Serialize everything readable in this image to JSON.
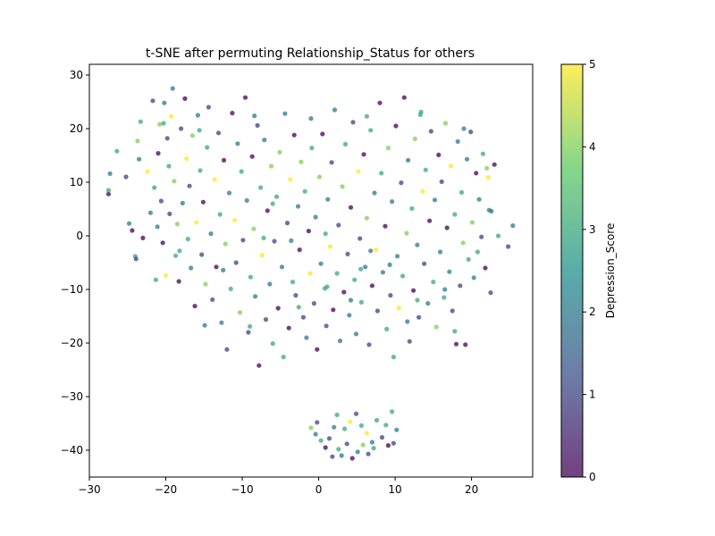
{
  "chart_data": {
    "type": "scatter",
    "title": "t-SNE after permuting Relationship_Status for others",
    "xlabel": "",
    "ylabel": "",
    "xlim": [
      -30,
      28
    ],
    "ylim": [
      -45,
      32
    ],
    "xticks": [
      -30,
      -20,
      -10,
      0,
      10,
      20
    ],
    "yticks": [
      -40,
      -30,
      -20,
      -10,
      0,
      10,
      20,
      30
    ],
    "grid": false,
    "colorbar": {
      "label": "Depression_Score",
      "range": [
        0,
        5
      ],
      "ticks": [
        0,
        1,
        2,
        3,
        4,
        5
      ],
      "colormap": "viridis"
    },
    "point_alpha": 0.75,
    "colormap_stops": [
      "#440154",
      "#3b528b",
      "#21918c",
      "#5ec962",
      "#fde725"
    ],
    "points": [
      [
        -27.5,
        7.8,
        0
      ],
      [
        -27.3,
        11.6,
        2
      ],
      [
        -27.5,
        8.5,
        3
      ],
      [
        -26.4,
        15.8,
        3
      ],
      [
        -25.2,
        11.0,
        1
      ],
      [
        -24.8,
        2.3,
        2
      ],
      [
        -24.4,
        1.0,
        0
      ],
      [
        -24.0,
        -3.8,
        3
      ],
      [
        -23.9,
        -4.3,
        1
      ],
      [
        -23.7,
        17.7,
        4
      ],
      [
        -23.5,
        14.3,
        2
      ],
      [
        -23.3,
        21.3,
        3
      ],
      [
        -23.0,
        -0.4,
        0
      ],
      [
        -22.4,
        12.0,
        5
      ],
      [
        -22.0,
        4.3,
        2
      ],
      [
        -21.7,
        25.2,
        1
      ],
      [
        -21.5,
        9.0,
        3
      ],
      [
        -21.3,
        -8.2,
        3
      ],
      [
        -21.1,
        1.7,
        2
      ],
      [
        -21.0,
        15.4,
        0
      ],
      [
        -20.8,
        20.8,
        4
      ],
      [
        -20.6,
        6.5,
        1
      ],
      [
        -20.4,
        -1.3,
        0
      ],
      [
        -20.2,
        24.8,
        2
      ],
      [
        -20.0,
        -7.4,
        5
      ],
      [
        -19.8,
        18.2,
        1
      ],
      [
        -19.6,
        13.0,
        3
      ],
      [
        -19.5,
        4.1,
        1
      ],
      [
        -19.3,
        22.3,
        5
      ],
      [
        -19.1,
        27.5,
        2
      ],
      [
        -18.9,
        10.2,
        4
      ],
      [
        -18.7,
        -3.7,
        3
      ],
      [
        -18.5,
        2.2,
        4
      ],
      [
        -18.3,
        -8.5,
        0
      ],
      [
        -18.0,
        20.0,
        1
      ],
      [
        -17.8,
        6.1,
        2
      ],
      [
        -17.5,
        25.6,
        0
      ],
      [
        -17.3,
        14.4,
        5
      ],
      [
        -17.1,
        -0.6,
        3
      ],
      [
        -16.9,
        9.3,
        1
      ],
      [
        -16.7,
        -6.0,
        2
      ],
      [
        -16.5,
        18.7,
        4
      ],
      [
        -16.2,
        -13.1,
        0
      ],
      [
        -16.0,
        2.5,
        5
      ],
      [
        -15.8,
        22.5,
        2
      ],
      [
        -15.5,
        12.2,
        3
      ],
      [
        -15.3,
        -3.5,
        1
      ],
      [
        -15.1,
        6.3,
        0
      ],
      [
        -14.8,
        -9.0,
        4
      ],
      [
        -14.6,
        16.5,
        3
      ],
      [
        -14.4,
        24.0,
        1
      ],
      [
        -14.1,
        0.4,
        2
      ],
      [
        -13.9,
        -11.9,
        1
      ],
      [
        -13.6,
        10.5,
        5
      ],
      [
        -13.4,
        -5.8,
        0
      ],
      [
        -13.1,
        19.2,
        1
      ],
      [
        -12.9,
        4.0,
        3
      ],
      [
        -12.7,
        -16.2,
        2
      ],
      [
        -12.4,
        14.1,
        0
      ],
      [
        -12.2,
        -1.5,
        4
      ],
      [
        -12.0,
        -21.2,
        1
      ],
      [
        -11.7,
        8.0,
        2
      ],
      [
        -11.5,
        -9.9,
        3
      ],
      [
        -11.3,
        22.9,
        0
      ],
      [
        -11.0,
        2.9,
        5
      ],
      [
        -10.8,
        -5.0,
        1
      ],
      [
        -10.6,
        17.2,
        2
      ],
      [
        -10.3,
        -14.3,
        4
      ],
      [
        -10.1,
        12.0,
        3
      ],
      [
        -9.9,
        -0.8,
        1
      ],
      [
        -9.6,
        25.8,
        0
      ],
      [
        -9.4,
        6.6,
        2
      ],
      [
        -9.2,
        -18.0,
        1
      ],
      [
        -8.9,
        -7.7,
        3
      ],
      [
        -8.7,
        14.8,
        0
      ],
      [
        -8.5,
        1.3,
        4
      ],
      [
        -8.3,
        -11.3,
        2
      ],
      [
        -8.0,
        20.6,
        1
      ],
      [
        -7.8,
        -24.2,
        0
      ],
      [
        -7.6,
        9.0,
        3
      ],
      [
        -7.4,
        -3.6,
        5
      ],
      [
        -7.1,
        17.9,
        2
      ],
      [
        -6.9,
        -15.6,
        1
      ],
      [
        -6.7,
        4.7,
        0
      ],
      [
        -6.4,
        -9.0,
        2
      ],
      [
        -6.2,
        13.0,
        4
      ],
      [
        -6.0,
        -20.1,
        3
      ],
      [
        -5.8,
        -1.0,
        1
      ],
      [
        -5.5,
        7.3,
        3
      ],
      [
        -5.3,
        -13.5,
        0
      ],
      [
        -5.1,
        15.6,
        4
      ],
      [
        -4.8,
        -5.8,
        2
      ],
      [
        -4.6,
        -22.6,
        3
      ],
      [
        -4.4,
        22.8,
        2
      ],
      [
        -4.1,
        2.4,
        1
      ],
      [
        -3.9,
        -17.2,
        0
      ],
      [
        -3.7,
        10.5,
        5
      ],
      [
        -3.4,
        -8.6,
        3
      ],
      [
        -3.2,
        18.8,
        0
      ],
      [
        -3.0,
        -11.1,
        1
      ],
      [
        -2.7,
        5.5,
        2
      ],
      [
        -2.5,
        -2.6,
        0
      ],
      [
        -2.3,
        13.8,
        4
      ],
      [
        -2.0,
        -15.2,
        1
      ],
      [
        -1.8,
        8.3,
        3
      ],
      [
        -1.6,
        -19.0,
        2
      ],
      [
        -1.3,
        0.9,
        0
      ],
      [
        -1.1,
        -7.0,
        5
      ],
      [
        -0.9,
        16.4,
        3
      ],
      [
        -0.6,
        -12.6,
        1
      ],
      [
        -0.4,
        3.5,
        2
      ],
      [
        -0.2,
        -21.2,
        0
      ],
      [
        0.1,
        11.0,
        4
      ],
      [
        0.3,
        -5.2,
        2
      ],
      [
        0.5,
        19.0,
        0
      ],
      [
        0.8,
        -9.8,
        3
      ],
      [
        1.0,
        -16.8,
        1
      ],
      [
        1.2,
        6.8,
        2
      ],
      [
        1.5,
        -2.0,
        5
      ],
      [
        1.7,
        13.7,
        1
      ],
      [
        1.9,
        -13.8,
        0
      ],
      [
        2.1,
        23.5,
        2
      ],
      [
        2.4,
        -7.0,
        3
      ],
      [
        2.6,
        2.0,
        1
      ],
      [
        2.8,
        -19.6,
        2
      ],
      [
        3.1,
        9.2,
        4
      ],
      [
        3.3,
        -10.5,
        0
      ],
      [
        3.5,
        17.1,
        3
      ],
      [
        3.8,
        -3.4,
        1
      ],
      [
        4.0,
        -14.8,
        2
      ],
      [
        4.2,
        5.3,
        0
      ],
      [
        4.5,
        21.2,
        1
      ],
      [
        4.7,
        -8.2,
        3
      ],
      [
        4.9,
        -18.3,
        2
      ],
      [
        5.2,
        12.0,
        5
      ],
      [
        5.4,
        -0.5,
        1
      ],
      [
        5.6,
        -12.4,
        3
      ],
      [
        5.9,
        15.2,
        0
      ],
      [
        6.1,
        -5.8,
        2
      ],
      [
        6.3,
        3.3,
        4
      ],
      [
        6.6,
        -20.3,
        1
      ],
      [
        6.8,
        19.7,
        3
      ],
      [
        7.0,
        -9.3,
        0
      ],
      [
        7.3,
        8.0,
        2
      ],
      [
        7.5,
        -2.6,
        5
      ],
      [
        7.7,
        -14.0,
        1
      ],
      [
        8.0,
        24.8,
        0
      ],
      [
        8.2,
        11.7,
        3
      ],
      [
        8.4,
        -6.8,
        2
      ],
      [
        8.7,
        1.8,
        0
      ],
      [
        8.9,
        -17.4,
        3
      ],
      [
        9.1,
        16.4,
        4
      ],
      [
        9.4,
        -11.1,
        1
      ],
      [
        9.6,
        6.4,
        2
      ],
      [
        9.8,
        -22.6,
        3
      ],
      [
        10.1,
        20.5,
        0
      ],
      [
        10.3,
        -3.8,
        2
      ],
      [
        10.5,
        -13.5,
        5
      ],
      [
        10.8,
        9.9,
        1
      ],
      [
        11.0,
        -7.5,
        3
      ],
      [
        11.2,
        25.8,
        0
      ],
      [
        11.5,
        0.5,
        4
      ],
      [
        11.7,
        14.1,
        2
      ],
      [
        11.9,
        -19.7,
        1
      ],
      [
        12.2,
        5.1,
        3
      ],
      [
        12.4,
        -10.2,
        0
      ],
      [
        12.6,
        18.1,
        4
      ],
      [
        12.9,
        -1.7,
        2
      ],
      [
        13.1,
        -15.2,
        1
      ],
      [
        13.3,
        22.6,
        3
      ],
      [
        13.6,
        8.3,
        5
      ],
      [
        13.8,
        -5.2,
        1
      ],
      [
        14.0,
        12.3,
        3
      ],
      [
        14.3,
        -12.6,
        2
      ],
      [
        14.5,
        2.8,
        0
      ],
      [
        14.7,
        19.5,
        1
      ],
      [
        15.0,
        -8.6,
        3
      ],
      [
        15.2,
        6.7,
        2
      ],
      [
        15.4,
        -17.0,
        4
      ],
      [
        15.7,
        15.1,
        0
      ],
      [
        15.9,
        -3.0,
        2
      ],
      [
        16.1,
        10.1,
        1
      ],
      [
        16.4,
        -11.5,
        3
      ],
      [
        16.6,
        21.0,
        4
      ],
      [
        16.8,
        1.5,
        0
      ],
      [
        17.1,
        -6.7,
        2
      ],
      [
        17.3,
        13.0,
        5
      ],
      [
        17.5,
        -14.0,
        1
      ],
      [
        17.8,
        4.0,
        3
      ],
      [
        18.0,
        -20.2,
        0
      ],
      [
        18.2,
        17.6,
        2
      ],
      [
        18.5,
        -9.3,
        1
      ],
      [
        18.7,
        8.1,
        3
      ],
      [
        18.9,
        -1.3,
        4
      ],
      [
        19.2,
        -20.3,
        0
      ],
      [
        19.4,
        14.3,
        2
      ],
      [
        19.6,
        -4.4,
        3
      ],
      [
        19.9,
        19.4,
        1
      ],
      [
        20.1,
        2.5,
        4
      ],
      [
        20.3,
        -7.8,
        2
      ],
      [
        20.6,
        11.7,
        0
      ],
      [
        20.8,
        -3.0,
        3
      ],
      [
        21.0,
        6.8,
        2
      ],
      [
        21.3,
        -0.2,
        1
      ],
      [
        21.5,
        15.3,
        3
      ],
      [
        21.8,
        -6.0,
        0
      ],
      [
        22.0,
        12.6,
        4
      ],
      [
        22.3,
        4.8,
        2
      ],
      [
        22.5,
        -10.6,
        1
      ],
      [
        23.0,
        13.3,
        0
      ],
      [
        23.5,
        0.0,
        3
      ],
      [
        25.4,
        1.9,
        2
      ],
      [
        22.6,
        4.6,
        2
      ],
      [
        22.2,
        10.9,
        5
      ],
      [
        24.8,
        -2.0,
        1
      ],
      [
        -18.2,
        -2.8,
        3
      ],
      [
        -12.5,
        -6.4,
        2
      ],
      [
        -7.2,
        -0.4,
        3
      ],
      [
        -3.6,
        -0.9,
        2
      ],
      [
        1.1,
        -9.5,
        3
      ],
      [
        5.5,
        -6.2,
        3
      ],
      [
        9.3,
        -5.4,
        2
      ],
      [
        12.9,
        -12.0,
        3
      ],
      [
        16.5,
        -10.0,
        2
      ],
      [
        -14.9,
        -16.7,
        2
      ],
      [
        -9.0,
        -16.9,
        3
      ],
      [
        -2.6,
        -13.3,
        3
      ],
      [
        4.2,
        -12.0,
        2
      ],
      [
        11.6,
        -16.0,
        2
      ],
      [
        17.8,
        -17.8,
        3
      ],
      [
        -20.3,
        21.0,
        3
      ],
      [
        -15.6,
        19.7,
        3
      ],
      [
        -8.4,
        22.4,
        2
      ],
      [
        -1.0,
        21.9,
        2
      ],
      [
        6.3,
        22.3,
        3
      ],
      [
        13.4,
        23.1,
        3
      ],
      [
        19.0,
        20.0,
        2
      ],
      [
        -6.0,
        6.0,
        3
      ],
      [
        0.9,
        0.4,
        3
      ],
      [
        6.8,
        -2.8,
        2
      ],
      [
        3.4,
        -36.0,
        3
      ],
      [
        4.1,
        -34.7,
        5
      ],
      [
        4.9,
        -33.2,
        1
      ],
      [
        5.6,
        -35.4,
        3
      ],
      [
        6.3,
        -36.8,
        5
      ],
      [
        7.0,
        -38.5,
        2
      ],
      [
        7.6,
        -34.4,
        3
      ],
      [
        8.3,
        -37.6,
        1
      ],
      [
        9.1,
        -39.1,
        0
      ],
      [
        9.6,
        -32.8,
        3
      ],
      [
        10.2,
        -36.2,
        2
      ],
      [
        9.8,
        -38.7,
        1
      ],
      [
        2.0,
        -35.7,
        2
      ],
      [
        1.4,
        -37.8,
        1
      ],
      [
        0.9,
        -39.5,
        0
      ],
      [
        0.3,
        -38.2,
        3
      ],
      [
        -0.4,
        -37.0,
        2
      ],
      [
        -1.0,
        -35.8,
        4
      ],
      [
        2.6,
        -39.8,
        3
      ],
      [
        3.0,
        -41.0,
        2
      ],
      [
        3.7,
        -38.8,
        1
      ],
      [
        4.4,
        -41.5,
        0
      ],
      [
        5.1,
        -40.3,
        2
      ],
      [
        5.8,
        -39.0,
        4
      ],
      [
        6.5,
        -40.7,
        1
      ],
      [
        7.2,
        -39.6,
        3
      ],
      [
        1.8,
        -41.2,
        1
      ],
      [
        2.4,
        -33.4,
        3
      ],
      [
        8.8,
        -35.3,
        3
      ],
      [
        -0.2,
        -34.8,
        1
      ]
    ]
  }
}
